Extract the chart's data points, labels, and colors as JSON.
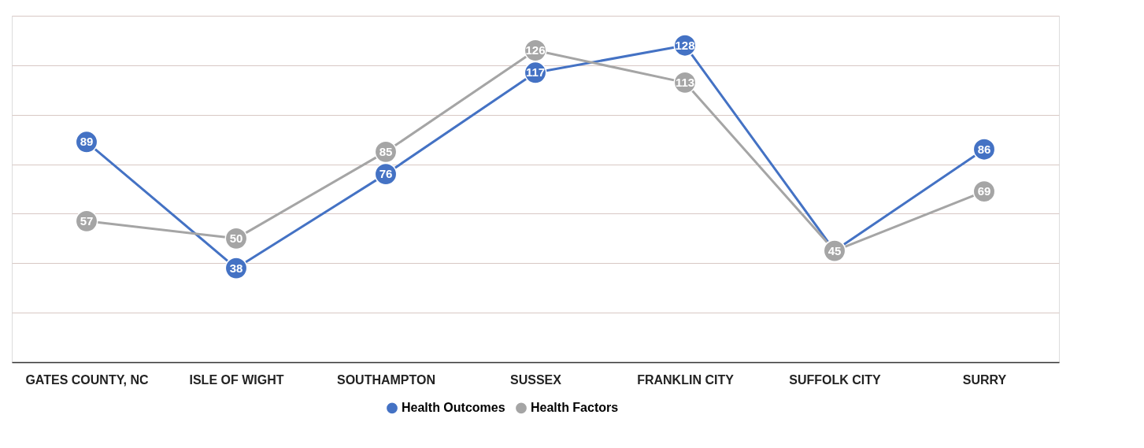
{
  "chart_data": {
    "type": "line",
    "categories": [
      "GATES COUNTY, NC",
      "ISLE OF WIGHT",
      "SOUTHAMPTON",
      "SUSSEX",
      "FRANKLIN CITY",
      "SUFFOLK CITY",
      "SURRY"
    ],
    "series": [
      {
        "name": "Health Outcomes",
        "color": "#4472c4",
        "values": [
          89,
          38,
          76,
          117,
          128,
          45,
          86
        ],
        "value_labels": [
          "89",
          "38",
          "76",
          "117",
          "128",
          null,
          "86"
        ]
      },
      {
        "name": "Health Factors",
        "color": "#a5a5a5",
        "values": [
          57,
          50,
          85,
          126,
          113,
          45,
          69
        ]
      }
    ],
    "ylim": [
      0,
      140
    ],
    "yticks": [
      {
        "value": 0,
        "label": null
      },
      {
        "value": 20,
        "label": null
      },
      {
        "value": 40,
        "label": null
      },
      {
        "value": 60,
        "label": null
      },
      {
        "value": 80,
        "label": null
      },
      {
        "value": 100,
        "label": null
      },
      {
        "value": 120,
        "label": null
      },
      {
        "value": 140,
        "label": null
      }
    ],
    "tick_labels": "x",
    "grid": "y",
    "legend": "bottom",
    "marker": "circle",
    "line_style": "solid",
    "data_labels": true
  }
}
